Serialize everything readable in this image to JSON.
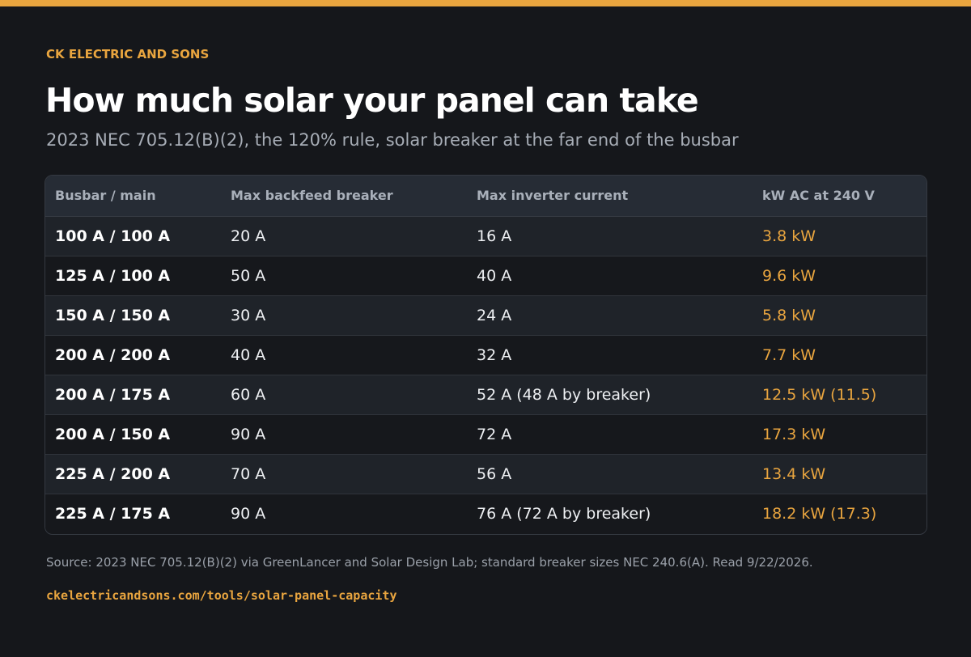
{
  "brand": "CK ELECTRIC AND SONS",
  "title": "How much solar your panel can take",
  "subtitle": "2023 NEC 705.12(B)(2), the 120% rule, solar breaker at the far end of the busbar",
  "table": {
    "headers": [
      "Busbar / main",
      "Max backfeed breaker",
      "Max inverter current",
      "kW AC at 240 V"
    ],
    "rows": [
      [
        "100 A / 100 A",
        "20 A",
        "16 A",
        "3.8 kW"
      ],
      [
        "125 A / 100 A",
        "50 A",
        "40 A",
        "9.6 kW"
      ],
      [
        "150 A / 150 A",
        "30 A",
        "24 A",
        "5.8 kW"
      ],
      [
        "200 A / 200 A",
        "40 A",
        "32 A",
        "7.7 kW"
      ],
      [
        "200 A / 175 A",
        "60 A",
        "52 A (48 A by breaker)",
        "12.5 kW (11.5)"
      ],
      [
        "200 A / 150 A",
        "90 A",
        "72 A",
        "17.3 kW"
      ],
      [
        "225 A / 200 A",
        "70 A",
        "56 A",
        "13.4 kW"
      ],
      [
        "225 A / 175 A",
        "90 A",
        "76 A (72 A by breaker)",
        "18.2 kW (17.3)"
      ]
    ]
  },
  "source": "Source: 2023 NEC 705.12(B)(2) via GreenLancer and Solar Design Lab; standard breaker sizes NEC 240.6(A). Read 9/22/2026.",
  "url": "ckelectricandsons.com/tools/solar-panel-capacity",
  "colors": {
    "accent": "#e9a53f",
    "background": "#15171b"
  }
}
